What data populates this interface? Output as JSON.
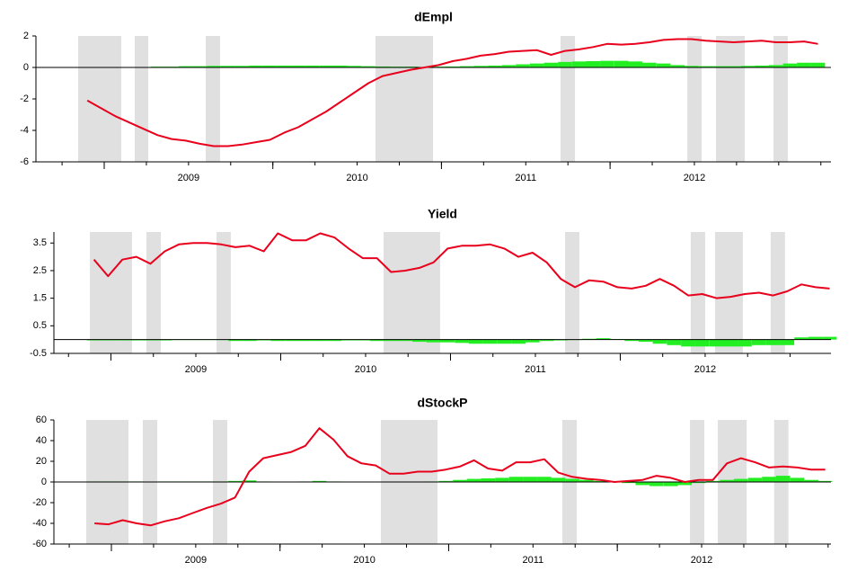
{
  "chart_data": [
    {
      "type": "line",
      "title": "dEmpl",
      "x": [
        2008.9,
        2008.983,
        2009.067,
        2009.15,
        2009.233,
        2009.317,
        2009.4,
        2009.483,
        2009.567,
        2009.65,
        2009.733,
        2009.817,
        2009.9,
        2009.983,
        2010.067,
        2010.15,
        2010.233,
        2010.317,
        2010.4,
        2010.483,
        2010.567,
        2010.65,
        2010.733,
        2010.817,
        2010.9,
        2010.983,
        2011.067,
        2011.15,
        2011.233,
        2011.317,
        2011.4,
        2011.483,
        2011.567,
        2011.65,
        2011.733,
        2011.817,
        2011.9,
        2011.983,
        2012.067,
        2012.15,
        2012.233,
        2012.317,
        2012.4,
        2012.483,
        2012.567,
        2012.65,
        2012.733,
        2012.817,
        2012.9,
        2012.983,
        2013.067,
        2013.15,
        2013.233
      ],
      "series": [
        {
          "color": "#e8001c",
          "values": [
            -2.1,
            -2.6,
            -3.1,
            -3.5,
            -3.9,
            -4.3,
            -4.55,
            -4.65,
            -4.85,
            -5.0,
            -5.0,
            -4.9,
            -4.75,
            -4.6,
            -4.15,
            -3.8,
            -3.3,
            -2.8,
            -2.2,
            -1.6,
            -1.0,
            -0.55,
            -0.35,
            -0.15,
            0.0,
            0.15,
            0.4,
            0.55,
            0.75,
            0.85,
            1.0,
            1.05,
            1.1,
            0.8,
            1.05,
            1.15,
            1.3,
            1.5,
            1.45,
            1.5,
            1.6,
            1.75,
            1.8,
            1.8,
            1.7,
            1.65,
            1.6,
            1.65,
            1.7,
            1.6,
            1.6,
            1.65,
            1.5
          ]
        },
        {
          "type": "bar",
          "color": "#22ee22",
          "values": [
            0.02,
            0.02,
            0.02,
            0.02,
            0.02,
            0.05,
            0.05,
            0.08,
            0.08,
            0.1,
            0.1,
            0.1,
            0.12,
            0.12,
            0.12,
            0.12,
            0.12,
            0.12,
            0.12,
            0.1,
            0.08,
            0.06,
            0.05,
            0.05,
            0.03,
            0.05,
            0.06,
            0.08,
            0.1,
            0.12,
            0.15,
            0.2,
            0.25,
            0.3,
            0.35,
            0.38,
            0.4,
            0.42,
            0.42,
            0.38,
            0.3,
            0.25,
            0.15,
            0.1,
            0.08,
            0.08,
            0.08,
            0.1,
            0.12,
            0.15,
            0.25,
            0.3,
            0.3
          ]
        }
      ],
      "shaded": [
        [
          2008.845,
          2009.101
        ],
        [
          2009.181,
          2009.261
        ],
        [
          2009.602,
          2009.687
        ],
        [
          2010.609,
          2010.95
        ],
        [
          2011.706,
          2011.792
        ],
        [
          2012.458,
          2012.543
        ],
        [
          2012.628,
          2012.799
        ],
        [
          2012.969,
          2013.054
        ]
      ],
      "shade_color": "#e0e0e0",
      "xlim": [
        2008.595,
        2013.31
      ],
      "xticks": [
        2009,
        2010,
        2011,
        2012
      ],
      "ylim": [
        -6,
        2
      ],
      "yticks": [
        -6,
        -4,
        -2,
        0,
        2
      ]
    },
    {
      "type": "line",
      "title": "Yield",
      "x": [
        2008.9,
        2008.983,
        2009.067,
        2009.15,
        2009.233,
        2009.317,
        2009.4,
        2009.483,
        2009.567,
        2009.65,
        2009.733,
        2009.817,
        2009.9,
        2009.983,
        2010.067,
        2010.15,
        2010.233,
        2010.317,
        2010.4,
        2010.483,
        2010.567,
        2010.65,
        2010.733,
        2010.817,
        2010.9,
        2010.983,
        2011.067,
        2011.15,
        2011.233,
        2011.317,
        2011.4,
        2011.483,
        2011.567,
        2011.65,
        2011.733,
        2011.817,
        2011.9,
        2011.983,
        2012.067,
        2012.15,
        2012.233,
        2012.317,
        2012.4,
        2012.483,
        2012.567,
        2012.65,
        2012.733,
        2012.817,
        2012.9,
        2012.983,
        2013.067,
        2013.15,
        2013.233
      ],
      "series": [
        {
          "color": "#e8001c",
          "values": [
            2.9,
            2.3,
            2.9,
            3.0,
            2.75,
            3.2,
            3.45,
            3.5,
            3.5,
            3.45,
            3.35,
            3.4,
            3.2,
            3.85,
            3.6,
            3.6,
            3.85,
            3.7,
            3.3,
            2.95,
            2.95,
            2.45,
            2.5,
            2.6,
            2.8,
            3.3,
            3.4,
            3.4,
            3.45,
            3.3,
            3.0,
            3.15,
            2.8,
            2.2,
            1.9,
            2.15,
            2.1,
            1.9,
            1.85,
            1.95,
            2.2,
            1.95,
            1.6,
            1.65,
            1.5,
            1.55,
            1.65,
            1.7,
            1.6,
            1.75,
            2.0,
            1.9,
            1.85
          ]
        },
        {
          "type": "bar",
          "color": "#22ee22",
          "values": [
            -0.03,
            -0.03,
            -0.03,
            -0.03,
            -0.03,
            -0.03,
            0,
            0,
            0,
            0,
            -0.05,
            -0.05,
            -0.03,
            -0.05,
            -0.05,
            -0.05,
            -0.05,
            -0.05,
            -0.03,
            -0.03,
            -0.05,
            -0.05,
            -0.05,
            -0.08,
            -0.1,
            -0.1,
            -0.12,
            -0.15,
            -0.15,
            -0.15,
            -0.15,
            -0.1,
            -0.05,
            -0.03,
            0,
            0.03,
            0.05,
            0.02,
            -0.05,
            -0.08,
            -0.15,
            -0.2,
            -0.25,
            -0.25,
            -0.25,
            -0.25,
            -0.25,
            -0.2,
            -0.2,
            -0.2,
            0.08,
            0.1,
            0.1
          ]
        }
      ],
      "shaded": [
        [
          2008.876,
          2009.124
        ],
        [
          2009.209,
          2009.294
        ],
        [
          2009.622,
          2009.706
        ],
        [
          2010.606,
          2010.939
        ],
        [
          2011.675,
          2011.759
        ],
        [
          2012.415,
          2012.5
        ],
        [
          2012.558,
          2012.722
        ],
        [
          2012.886,
          2012.97
        ]
      ],
      "shade_color": "#e0e0e0",
      "xlim": [
        2008.664,
        2013.241
      ],
      "xticks": [
        2009,
        2010,
        2011,
        2012
      ],
      "ylim": [
        -0.5,
        3.9
      ],
      "yticks": [
        -0.5,
        0.5,
        1.5,
        2.5,
        3.5
      ]
    },
    {
      "type": "line",
      "title": "dStockP",
      "x": [
        2008.9,
        2008.983,
        2009.067,
        2009.15,
        2009.233,
        2009.317,
        2009.4,
        2009.483,
        2009.567,
        2009.65,
        2009.733,
        2009.817,
        2009.9,
        2009.983,
        2010.067,
        2010.15,
        2010.233,
        2010.317,
        2010.4,
        2010.483,
        2010.567,
        2010.65,
        2010.733,
        2010.817,
        2010.9,
        2010.983,
        2011.067,
        2011.15,
        2011.233,
        2011.317,
        2011.4,
        2011.483,
        2011.567,
        2011.65,
        2011.733,
        2011.817,
        2011.9,
        2011.983,
        2012.067,
        2012.15,
        2012.233,
        2012.317,
        2012.4,
        2012.483,
        2012.567,
        2012.65,
        2012.733,
        2012.817,
        2012.9,
        2012.983,
        2013.067,
        2013.15,
        2013.233
      ],
      "series": [
        {
          "color": "#e8001c",
          "values": [
            -40,
            -41,
            -37,
            -40,
            -42,
            -38,
            -35,
            -30,
            -25,
            -21,
            -15,
            10,
            23,
            26,
            29,
            35,
            52,
            41,
            25,
            18,
            16,
            8,
            8,
            10,
            10,
            12,
            15,
            21,
            13,
            11,
            19,
            19,
            22,
            9,
            5,
            3,
            2,
            0,
            1,
            2,
            6,
            4,
            0,
            2,
            2,
            18,
            23,
            19,
            14,
            15,
            14,
            12,
            12
          ]
        },
        {
          "type": "bar",
          "color": "#22ee22",
          "values": [
            0.5,
            0.5,
            0.5,
            0.5,
            0.3,
            0.5,
            0.5,
            0.5,
            0.5,
            0.5,
            1,
            1.5,
            0.5,
            0.3,
            0.3,
            0.5,
            1,
            0.5,
            0.3,
            0,
            0,
            0,
            0.3,
            0.3,
            0.5,
            1,
            2,
            3,
            3.5,
            4,
            5,
            5,
            5,
            4,
            3,
            2,
            1,
            0.5,
            -1,
            -3,
            -4,
            -4,
            -3,
            -1,
            1,
            2,
            3,
            4,
            5,
            6,
            4,
            2,
            1
          ]
        }
      ],
      "shaded": [
        [
          2008.851,
          2009.101
        ],
        [
          2009.186,
          2009.272
        ],
        [
          2009.602,
          2009.687
        ],
        [
          2010.598,
          2010.934
        ],
        [
          2011.674,
          2011.76
        ],
        [
          2012.431,
          2012.516
        ],
        [
          2012.596,
          2012.767
        ],
        [
          2012.93,
          2013.015
        ]
      ],
      "shade_color": "#e0e0e0",
      "xlim": [
        2008.659,
        2013.267
      ],
      "xticks": [
        2009,
        2010,
        2011,
        2012
      ],
      "ylim": [
        -60,
        60
      ],
      "yticks": [
        -60,
        -40,
        -20,
        0,
        20,
        40,
        60
      ]
    }
  ]
}
